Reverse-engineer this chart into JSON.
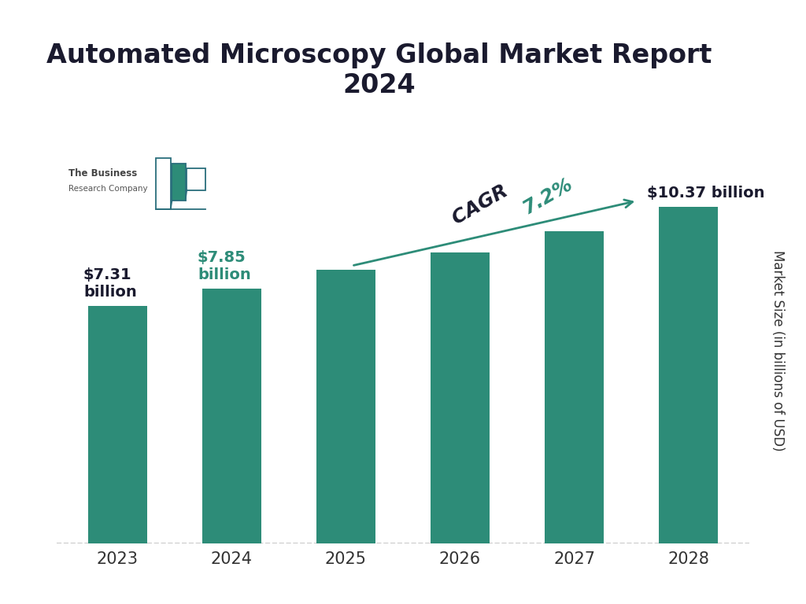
{
  "title": "Automated Microscopy Global Market Report\n2024",
  "years": [
    "2023",
    "2024",
    "2025",
    "2026",
    "2027",
    "2028"
  ],
  "values": [
    7.31,
    7.85,
    8.42,
    8.96,
    9.62,
    10.37
  ],
  "bar_color": "#2d8c78",
  "ylabel": "Market Size (in billions of USD)",
  "ylabel_color": "#333333",
  "title_color": "#1a1a2e",
  "background_color": "#ffffff",
  "label_2023": "$7.31\nbillion",
  "label_2024": "$7.85\nbillion",
  "label_2028": "$10.37 billion",
  "label_color_2023": "#1a1a2e",
  "label_color_2024": "#2d8c78",
  "label_color_2028": "#1a1a2e",
  "cagr_text_dark": "CAGR ",
  "cagr_text_green": "7.2%",
  "cagr_color_dark": "#1a1a2e",
  "cagr_color_green": "#2d8c78",
  "arrow_color": "#2d8c78",
  "dashed_line_color": "#bbbbbb",
  "logo_bar_color": "#2d8c78",
  "logo_outline_color": "#2a6e7c",
  "ylim": [
    0,
    14.5
  ],
  "bar_width": 0.52
}
